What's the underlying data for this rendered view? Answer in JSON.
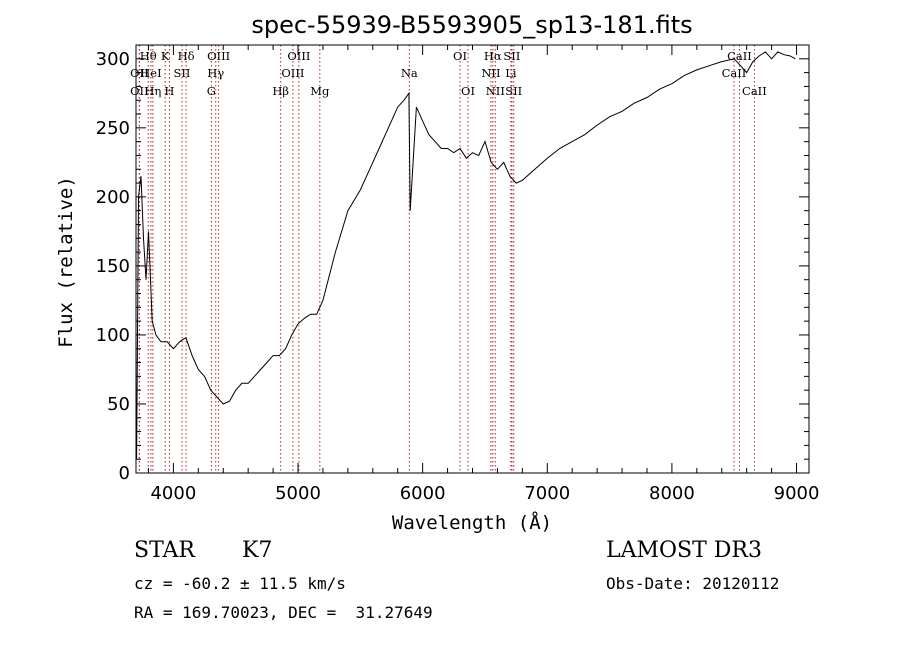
{
  "chart_data": {
    "type": "line",
    "title": "spec-55939-B5593905_sp13-181.fits",
    "xlabel": "Wavelength (Å)",
    "ylabel": "Flux (relative)",
    "xlim": [
      3700,
      9100
    ],
    "ylim": [
      0,
      310
    ],
    "xticks": [
      4000,
      5000,
      6000,
      7000,
      8000,
      9000
    ],
    "yticks": [
      0,
      50,
      100,
      150,
      200,
      250,
      300
    ],
    "grid": false,
    "line_color": "#000000",
    "marker_color": "#b22222",
    "series": [
      {
        "x": [
          3705,
          3720,
          3740,
          3760,
          3780,
          3800,
          3830,
          3860,
          3900,
          3950,
          4000,
          4050,
          4100,
          4150,
          4200,
          4250,
          4300,
          4350,
          4400,
          4450,
          4500,
          4550,
          4600,
          4650,
          4700,
          4750,
          4800,
          4850,
          4900,
          4950,
          5000,
          5050,
          5100,
          5150,
          5200,
          5300,
          5400,
          5500,
          5600,
          5700,
          5800,
          5850,
          5890,
          5900,
          5950,
          6000,
          6050,
          6100,
          6150,
          6200,
          6250,
          6300,
          6350,
          6400,
          6450,
          6500,
          6550,
          6600,
          6650,
          6700,
          6750,
          6800,
          6900,
          7000,
          7100,
          7200,
          7300,
          7400,
          7500,
          7600,
          7700,
          7800,
          7900,
          8000,
          8100,
          8200,
          8300,
          8400,
          8500,
          8550,
          8600,
          8650,
          8700,
          8750,
          8800,
          8850,
          8900,
          8950,
          8990
        ],
        "y": [
          10,
          200,
          215,
          170,
          140,
          175,
          110,
          100,
          95,
          95,
          90,
          95,
          98,
          85,
          75,
          70,
          60,
          55,
          50,
          52,
          60,
          65,
          65,
          70,
          75,
          80,
          85,
          85,
          90,
          100,
          108,
          112,
          115,
          115,
          125,
          160,
          190,
          205,
          225,
          245,
          265,
          270,
          275,
          190,
          265,
          255,
          245,
          240,
          235,
          235,
          232,
          235,
          228,
          232,
          230,
          240,
          225,
          220,
          225,
          215,
          210,
          212,
          220,
          228,
          235,
          240,
          245,
          252,
          258,
          262,
          268,
          272,
          278,
          282,
          288,
          292,
          295,
          298,
          300,
          295,
          290,
          298,
          302,
          305,
          300,
          305,
          303,
          302,
          300
        ]
      }
    ],
    "lines": [
      {
        "label": "Hθ",
        "x": 3798,
        "row": 0
      },
      {
        "label": "OII",
        "x": 3727,
        "row": 1
      },
      {
        "label": "OII",
        "x": 3727,
        "row": 2
      },
      {
        "label": "Hη",
        "x": 3835,
        "row": 2
      },
      {
        "label": "HeI",
        "x": 3820,
        "row": 1
      },
      {
        "label": "K",
        "x": 3934,
        "row": 0
      },
      {
        "label": "SII",
        "x": 4069,
        "row": 1
      },
      {
        "label": "H",
        "x": 3968,
        "row": 2
      },
      {
        "label": "Hδ",
        "x": 4102,
        "row": 0
      },
      {
        "label": "OIII",
        "x": 4363,
        "row": 0
      },
      {
        "label": "Hγ",
        "x": 4340,
        "row": 1
      },
      {
        "label": "G",
        "x": 4305,
        "row": 2
      },
      {
        "label": "OIII",
        "x": 5007,
        "row": 0
      },
      {
        "label": "OIII",
        "x": 4959,
        "row": 1
      },
      {
        "label": "Hβ",
        "x": 4861,
        "row": 2
      },
      {
        "label": "Mg",
        "x": 5175,
        "row": 2
      },
      {
        "label": "Na",
        "x": 5893,
        "row": 1
      },
      {
        "label": "OI",
        "x": 6300,
        "row": 0
      },
      {
        "label": "OI",
        "x": 6364,
        "row": 2
      },
      {
        "label": "Hα",
        "x": 6563,
        "row": 0
      },
      {
        "label": "NII",
        "x": 6548,
        "row": 1
      },
      {
        "label": "NII",
        "x": 6583,
        "row": 2
      },
      {
        "label": "SII",
        "x": 6716,
        "row": 0
      },
      {
        "label": "Li",
        "x": 6708,
        "row": 1
      },
      {
        "label": "SII",
        "x": 6731,
        "row": 2
      },
      {
        "label": "CaII",
        "x": 8542,
        "row": 0
      },
      {
        "label": "CaII",
        "x": 8498,
        "row": 1
      },
      {
        "label": "CaII",
        "x": 8662,
        "row": 2
      }
    ]
  },
  "info": {
    "object_class": "STAR",
    "subclass": "K7",
    "survey": "LAMOST DR3",
    "redshift": "cz = -60.2 ± 11.5 km/s",
    "obs_date": "Obs-Date: 20120112",
    "coords": "RA = 169.70023, DEC =  31.27649"
  }
}
